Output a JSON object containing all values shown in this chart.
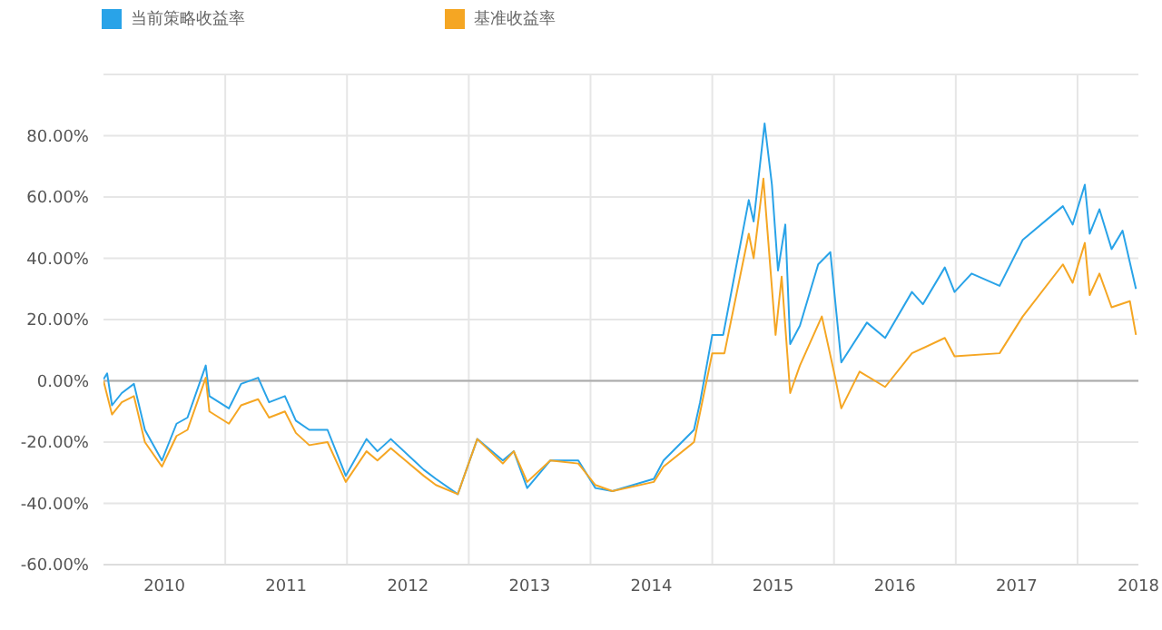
{
  "chart_data": {
    "type": "line",
    "legend": "top left",
    "grid": true,
    "marker": "none",
    "line_style": "solid",
    "xlim": [
      2010,
      2018.5
    ],
    "xticks": [
      {
        "value": 2010.5,
        "label": "2010"
      },
      {
        "value": 2011,
        "label": null
      },
      {
        "value": 2011.5,
        "label": "2011"
      },
      {
        "value": 2012,
        "label": null
      },
      {
        "value": 2012.5,
        "label": "2012"
      },
      {
        "value": 2013,
        "label": null
      },
      {
        "value": 2013.5,
        "label": "2013"
      },
      {
        "value": 2014,
        "label": null
      },
      {
        "value": 2014.5,
        "label": "2014"
      },
      {
        "value": 2015,
        "label": null
      },
      {
        "value": 2015.5,
        "label": "2015"
      },
      {
        "value": 2016,
        "label": null
      },
      {
        "value": 2016.5,
        "label": "2016"
      },
      {
        "value": 2017,
        "label": null
      },
      {
        "value": 2017.5,
        "label": "2017"
      },
      {
        "value": 2018,
        "label": null
      },
      {
        "value": 2018.5,
        "label": "2018"
      }
    ],
    "ylim": [
      -60,
      100
    ],
    "yticks": [
      {
        "value": -60,
        "label": "-60.00%"
      },
      {
        "value": -40,
        "label": "-40.00%"
      },
      {
        "value": -20,
        "label": "-20.00%"
      },
      {
        "value": 0,
        "label": "0.00%"
      },
      {
        "value": 20,
        "label": "20.00%"
      },
      {
        "value": 40,
        "label": "40.00%"
      },
      {
        "value": 60,
        "label": "60.00%"
      },
      {
        "value": 80,
        "label": "80.00%"
      }
    ],
    "ref_lines": [
      {
        "axis": "y",
        "value": 0,
        "color": "#aaaaaa"
      }
    ],
    "series": [
      {
        "name": "当前策略收益率",
        "color": "#29a3e8",
        "x": [
          2010.0,
          2010.03,
          2010.07,
          2010.15,
          2010.25,
          2010.34,
          2010.48,
          2010.6,
          2010.69,
          2010.84,
          2010.87,
          2011.03,
          2011.13,
          2011.27,
          2011.36,
          2011.49,
          2011.58,
          2011.69,
          2011.84,
          2011.99,
          2012.16,
          2012.25,
          2012.36,
          2012.63,
          2012.73,
          2012.91,
          2013.07,
          2013.28,
          2013.37,
          2013.48,
          2013.67,
          2013.9,
          2014.04,
          2014.18,
          2014.52,
          2014.6,
          2014.85,
          2014.9,
          2015.0,
          2015.09,
          2015.3,
          2015.34,
          2015.43,
          2015.49,
          2015.54,
          2015.6,
          2015.64,
          2015.72,
          2015.87,
          2015.97,
          2016.06,
          2016.27,
          2016.42,
          2016.64,
          2016.73,
          2016.91,
          2016.99,
          2017.13,
          2017.36,
          2017.55,
          2017.88,
          2017.96,
          2018.06,
          2018.1,
          2018.18,
          2018.28,
          2018.37,
          2018.48
        ],
        "values": [
          0.5,
          2.4,
          -8,
          -4,
          -1,
          -16,
          -26,
          -14,
          -12,
          5,
          -5,
          -9,
          -1,
          1,
          -7,
          -5,
          -13,
          -16,
          -16,
          -31,
          -19,
          -23,
          -19,
          -29,
          -32,
          -37,
          -19,
          -26,
          -23,
          -35,
          -26,
          -26,
          -35,
          -36,
          -32,
          -26,
          -16,
          -7,
          15,
          15,
          59,
          52,
          84,
          64,
          36,
          51,
          12,
          18,
          38,
          42,
          6,
          19,
          14,
          29,
          25,
          37,
          29,
          35,
          31,
          46,
          57,
          51,
          64,
          48,
          56,
          43,
          49,
          30
        ]
      },
      {
        "name": "基准收益率",
        "color": "#f5a623",
        "x": [
          2010.0,
          2010.07,
          2010.15,
          2010.25,
          2010.34,
          2010.48,
          2010.6,
          2010.69,
          2010.84,
          2010.87,
          2011.03,
          2011.13,
          2011.27,
          2011.36,
          2011.49,
          2011.58,
          2011.69,
          2011.84,
          2011.99,
          2012.16,
          2012.25,
          2012.36,
          2012.63,
          2012.73,
          2012.91,
          2013.07,
          2013.28,
          2013.37,
          2013.48,
          2013.67,
          2013.9,
          2014.04,
          2014.18,
          2014.52,
          2014.6,
          2014.85,
          2015.0,
          2015.1,
          2015.3,
          2015.34,
          2015.42,
          2015.52,
          2015.57,
          2015.64,
          2015.72,
          2015.9,
          2016.01,
          2016.06,
          2016.21,
          2016.42,
          2016.64,
          2016.91,
          2016.99,
          2017.36,
          2017.55,
          2017.88,
          2017.96,
          2018.06,
          2018.1,
          2018.18,
          2018.28,
          2018.43,
          2018.48
        ],
        "values": [
          0,
          -11,
          -7,
          -5,
          -20,
          -28,
          -18,
          -16,
          1,
          -10,
          -14,
          -8,
          -6,
          -12,
          -10,
          -17,
          -21,
          -20,
          -33,
          -23,
          -26,
          -22,
          -31,
          -34,
          -37,
          -19,
          -27,
          -23,
          -33,
          -26,
          -27,
          -34,
          -36,
          -33,
          -28,
          -20,
          9,
          9,
          48,
          40,
          66,
          15,
          34,
          -4,
          5,
          21,
          1,
          -9,
          3,
          -2,
          9,
          14,
          8,
          9,
          21,
          38,
          32,
          45,
          28,
          35,
          24,
          26,
          15
        ]
      }
    ]
  }
}
